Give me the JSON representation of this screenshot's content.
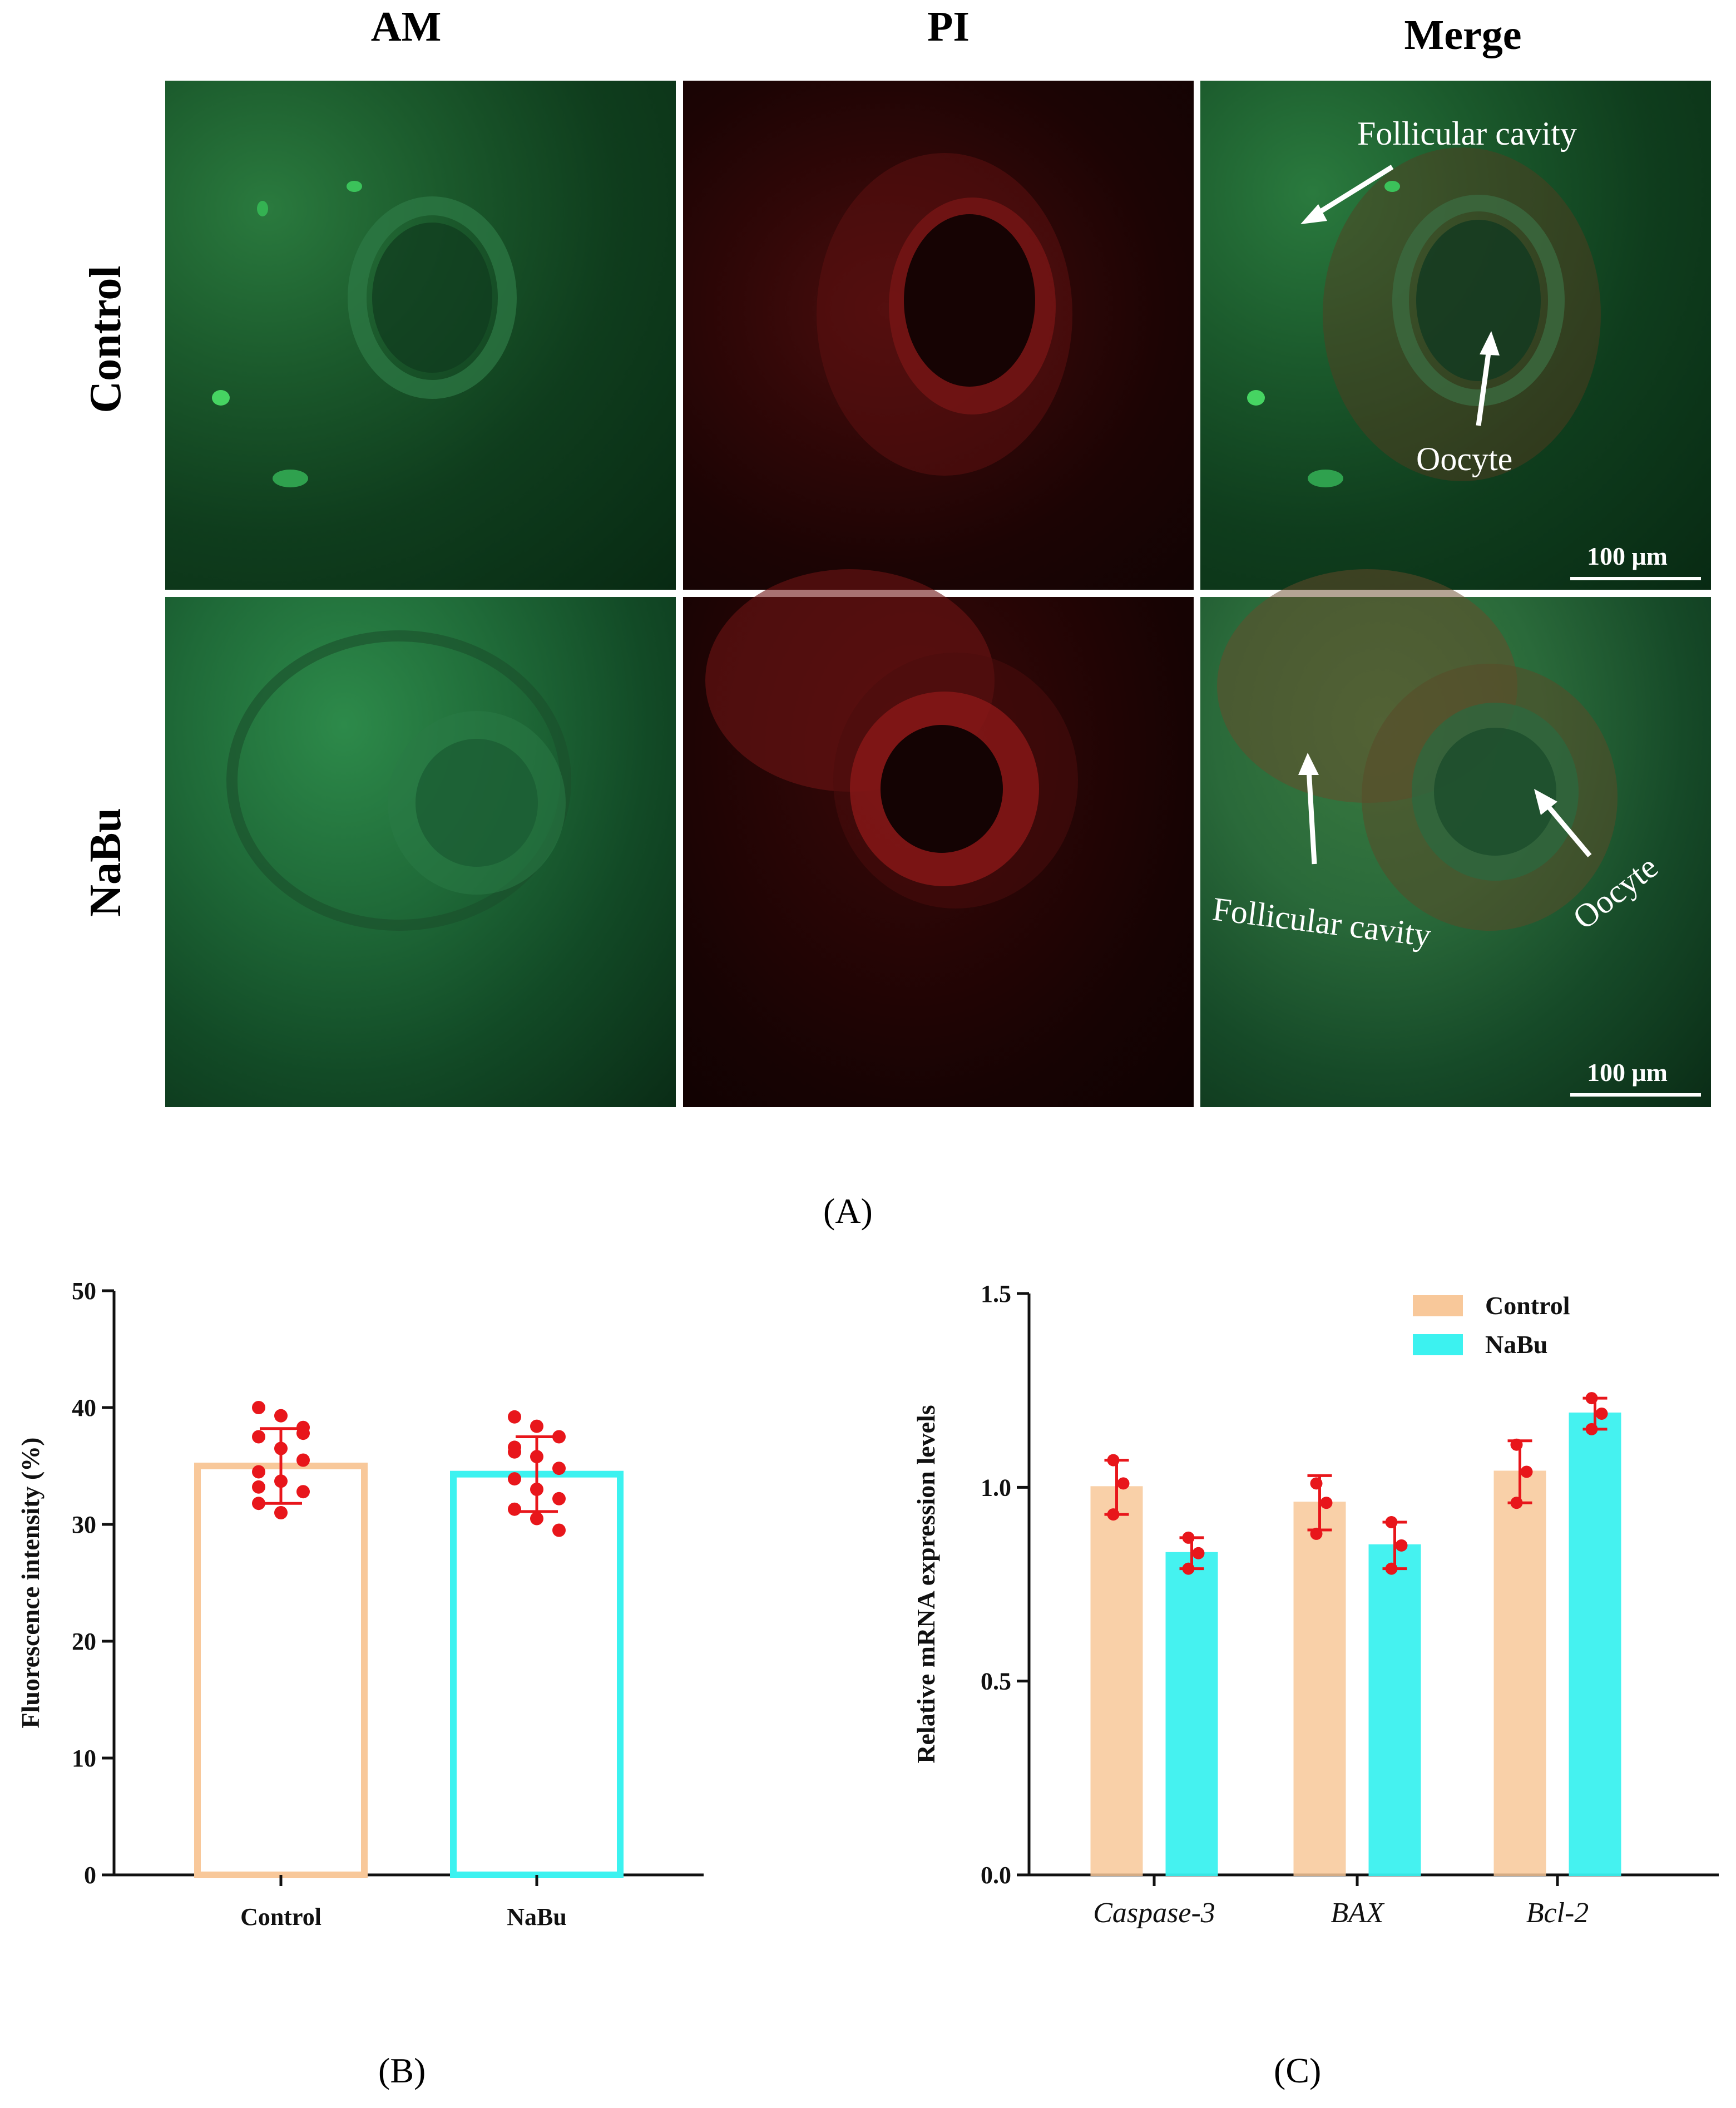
{
  "figure_a": {
    "columns": [
      "AM",
      "PI",
      "Merge"
    ],
    "rows": [
      "Control",
      "NaBu"
    ],
    "annotations": {
      "control_cavity": "Follicular cavity",
      "control_oocyte": "Oocyte",
      "nabu_cavity": "Follicular cavity",
      "nabu_oocyte": "Oocyte"
    },
    "scale_bar": "100 μm",
    "label": "(A)"
  },
  "panel_labels": {
    "b": "(B)",
    "c": "(C)"
  },
  "colors": {
    "control": "#F8C89A",
    "nabu": "#3CF2F0",
    "points": "#E8161B",
    "green_stain": "#1F8A45",
    "red_stain": "#8A1414"
  },
  "chart_data": [
    {
      "type": "bar",
      "categories": [
        "Control",
        "NaBu"
      ],
      "values": [
        35.0,
        34.3
      ],
      "errors": [
        3.2,
        3.2
      ],
      "points": [
        [
          40,
          39.3,
          38.3,
          37.5,
          36.5,
          35.5,
          34.5,
          33.7,
          32.8,
          31.8,
          31,
          37.8,
          33.2
        ],
        [
          39.2,
          38.4,
          37.5,
          36.6,
          35.8,
          34.8,
          33.9,
          33,
          32.2,
          31.3,
          30.5,
          29.5,
          36.2
        ]
      ],
      "ylabel": "Fluorescence intensity (%)",
      "xlabel": "",
      "ylim": [
        0,
        50
      ],
      "yticks": [
        "0",
        "10",
        "20",
        "30",
        "40",
        "50"
      ],
      "style": "hollow bars with points and error bars"
    },
    {
      "type": "bar",
      "categories": [
        "Caspase-3",
        "BAX",
        "Bcl-2"
      ],
      "series": [
        {
          "name": "Control",
          "values": [
            1.0,
            0.96,
            1.04
          ],
          "errors": [
            0.07,
            0.07,
            0.08
          ],
          "points": [
            [
              1.07,
              1.01,
              0.93
            ],
            [
              1.01,
              0.96,
              0.88
            ],
            [
              1.11,
              1.04,
              0.96
            ]
          ]
        },
        {
          "name": "NaBu",
          "values": [
            0.83,
            0.85,
            1.19
          ],
          "errors": [
            0.04,
            0.06,
            0.04
          ],
          "points": [
            [
              0.87,
              0.83,
              0.79
            ],
            [
              0.91,
              0.85,
              0.79
            ],
            [
              1.23,
              1.19,
              1.15
            ]
          ]
        }
      ],
      "ylabel": "Relative mRNA expression levels",
      "xlabel": "",
      "ylim": [
        0,
        1.5
      ],
      "yticks": [
        "0.0",
        "0.5",
        "1.0",
        "1.5"
      ],
      "legend": "top-right",
      "italic_categories": true
    }
  ]
}
